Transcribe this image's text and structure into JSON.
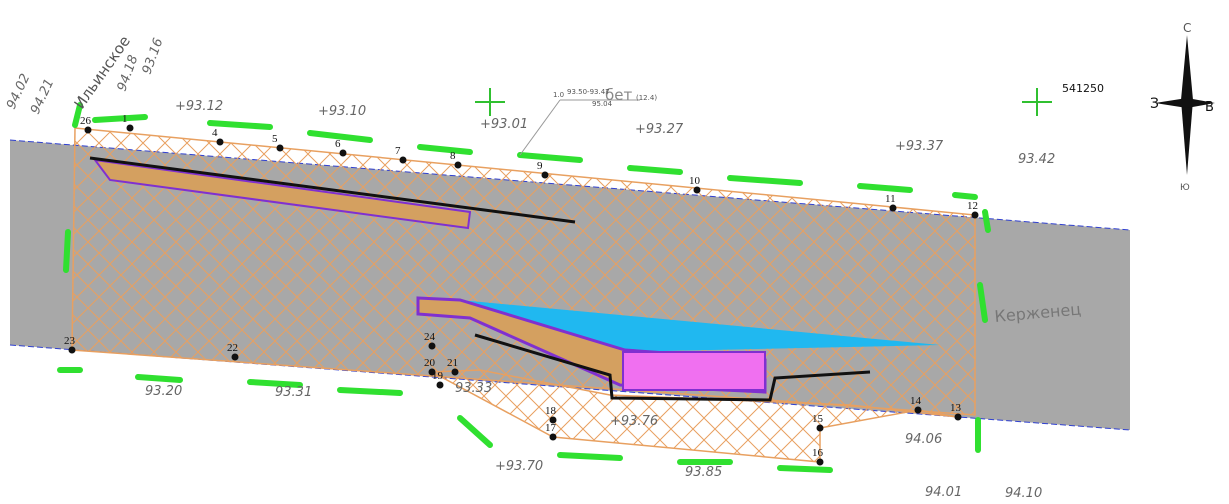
{
  "map": {
    "place_name": "Ильинское",
    "river_name": "Керженец",
    "coordinate": "541250",
    "note": {
      "material": "бет",
      "size": "(12.4)",
      "scale": "1.0",
      "range": "93.50-93.47",
      "level": "95.04"
    },
    "compass": {
      "north": "С",
      "south": "Ю",
      "west": "З",
      "east": "В"
    },
    "points": [
      "26",
      "1",
      "4",
      "5",
      "6",
      "7",
      "8",
      "9",
      "10",
      "11",
      "12",
      "13",
      "14",
      "15",
      "16",
      "17",
      "18",
      "19",
      "20",
      "21",
      "22",
      "23",
      "24"
    ],
    "elevations": [
      "94.18",
      "93.16",
      "94.02",
      "94.21",
      "+93.12",
      "+93.10",
      "+93.01",
      "+93.27",
      "+93.37",
      "93.42",
      "93.20",
      "93.31",
      "93.33",
      "+93.76",
      "+93.70",
      "93.85",
      "94.06",
      "94.01",
      "94.10"
    ]
  }
}
